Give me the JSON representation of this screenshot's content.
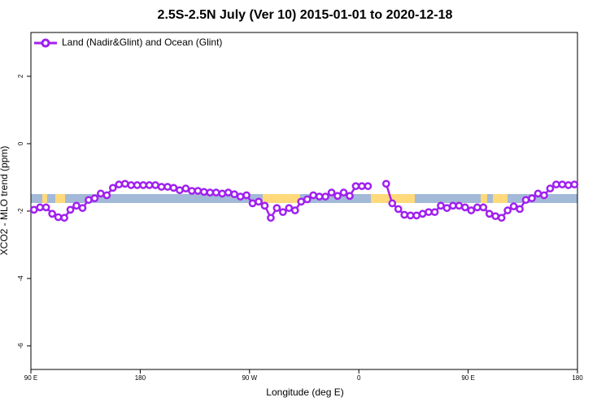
{
  "chart_data": {
    "type": "line",
    "title": "2.5S-2.5N July (Ver 10)   2015-01-01 to 2020-12-18",
    "xlabel": "Longitude (deg E)",
    "ylabel": "XCO2 - MLO trend (ppm)",
    "xlim": [
      90,
      540
    ],
    "ylim": [
      -6.7,
      3.3
    ],
    "xticks": [
      {
        "value": 90,
        "label": "90 E"
      },
      {
        "value": 180,
        "label": "180"
      },
      {
        "value": 270,
        "label": "90 W"
      },
      {
        "value": 360,
        "label": "0"
      },
      {
        "value": 450,
        "label": "90 E"
      },
      {
        "value": 540,
        "label": "180"
      }
    ],
    "yticks": [
      2,
      0,
      -2,
      -4,
      -6
    ],
    "legend": "top-left",
    "x": [
      92.5,
      97.5,
      102.5,
      107.5,
      112.5,
      117.5,
      122.5,
      127.5,
      132.5,
      137.5,
      142.5,
      147.5,
      152.5,
      157.5,
      162.5,
      167.5,
      172.5,
      177.5,
      182.5,
      187.5,
      192.5,
      197.5,
      202.5,
      207.5,
      212.5,
      217.5,
      222.5,
      227.5,
      232.5,
      237.5,
      242.5,
      247.5,
      252.5,
      257.5,
      262.5,
      267.5,
      272.5,
      277.5,
      282.5,
      287.5,
      292.5,
      297.5,
      302.5,
      307.5,
      312.5,
      317.5,
      322.5,
      327.5,
      332.5,
      337.5,
      342.5,
      347.5,
      352.5,
      357.5,
      362.5,
      367.5,
      372.5,
      377.5,
      382.5,
      387.5,
      392.5,
      397.5,
      402.5,
      407.5,
      412.5,
      417.5,
      422.5,
      427.5,
      432.5,
      437.5,
      442.5,
      447.5,
      452.5,
      457.5,
      462.5,
      467.5,
      472.5,
      477.5,
      482.5,
      487.5,
      492.5,
      497.5,
      502.5,
      507.5,
      512.5,
      517.5,
      522.5,
      527.5,
      532.5,
      537.5
    ],
    "series": [
      {
        "name": "Land (Nadir&Glint) and Ocean (Glint)",
        "color": "#a020f0",
        "values": [
          -1.96,
          -1.89,
          -1.89,
          -2.08,
          -2.18,
          -2.2,
          -1.96,
          -1.84,
          -1.91,
          -1.67,
          -1.62,
          -1.48,
          -1.53,
          -1.31,
          -1.21,
          -1.19,
          -1.23,
          -1.23,
          -1.23,
          -1.23,
          -1.23,
          -1.28,
          -1.28,
          -1.31,
          -1.38,
          -1.33,
          -1.4,
          -1.4,
          -1.43,
          -1.45,
          -1.45,
          -1.48,
          -1.45,
          -1.5,
          -1.57,
          -1.53,
          -1.77,
          -1.72,
          -1.84,
          -2.2,
          -1.91,
          -2.03,
          -1.91,
          -1.98,
          -1.72,
          -1.65,
          -1.53,
          -1.57,
          -1.57,
          -1.45,
          -1.55,
          -1.45,
          -1.55,
          -1.26,
          -1.26,
          -1.26,
          null,
          null,
          -1.19,
          -1.77,
          -1.94,
          -2.11,
          -2.13,
          -2.13,
          -2.08,
          -2.03,
          -2.03,
          -1.84,
          -1.91,
          -1.84,
          -1.84,
          -1.89,
          -1.98,
          -1.89,
          -1.89,
          -2.08,
          -2.15,
          -2.2,
          -1.98,
          -1.86,
          -1.94,
          -1.67,
          -1.62,
          -1.48,
          -1.53,
          -1.33,
          -1.21,
          -1.21,
          -1.23,
          -1.21
        ]
      }
    ]
  }
}
